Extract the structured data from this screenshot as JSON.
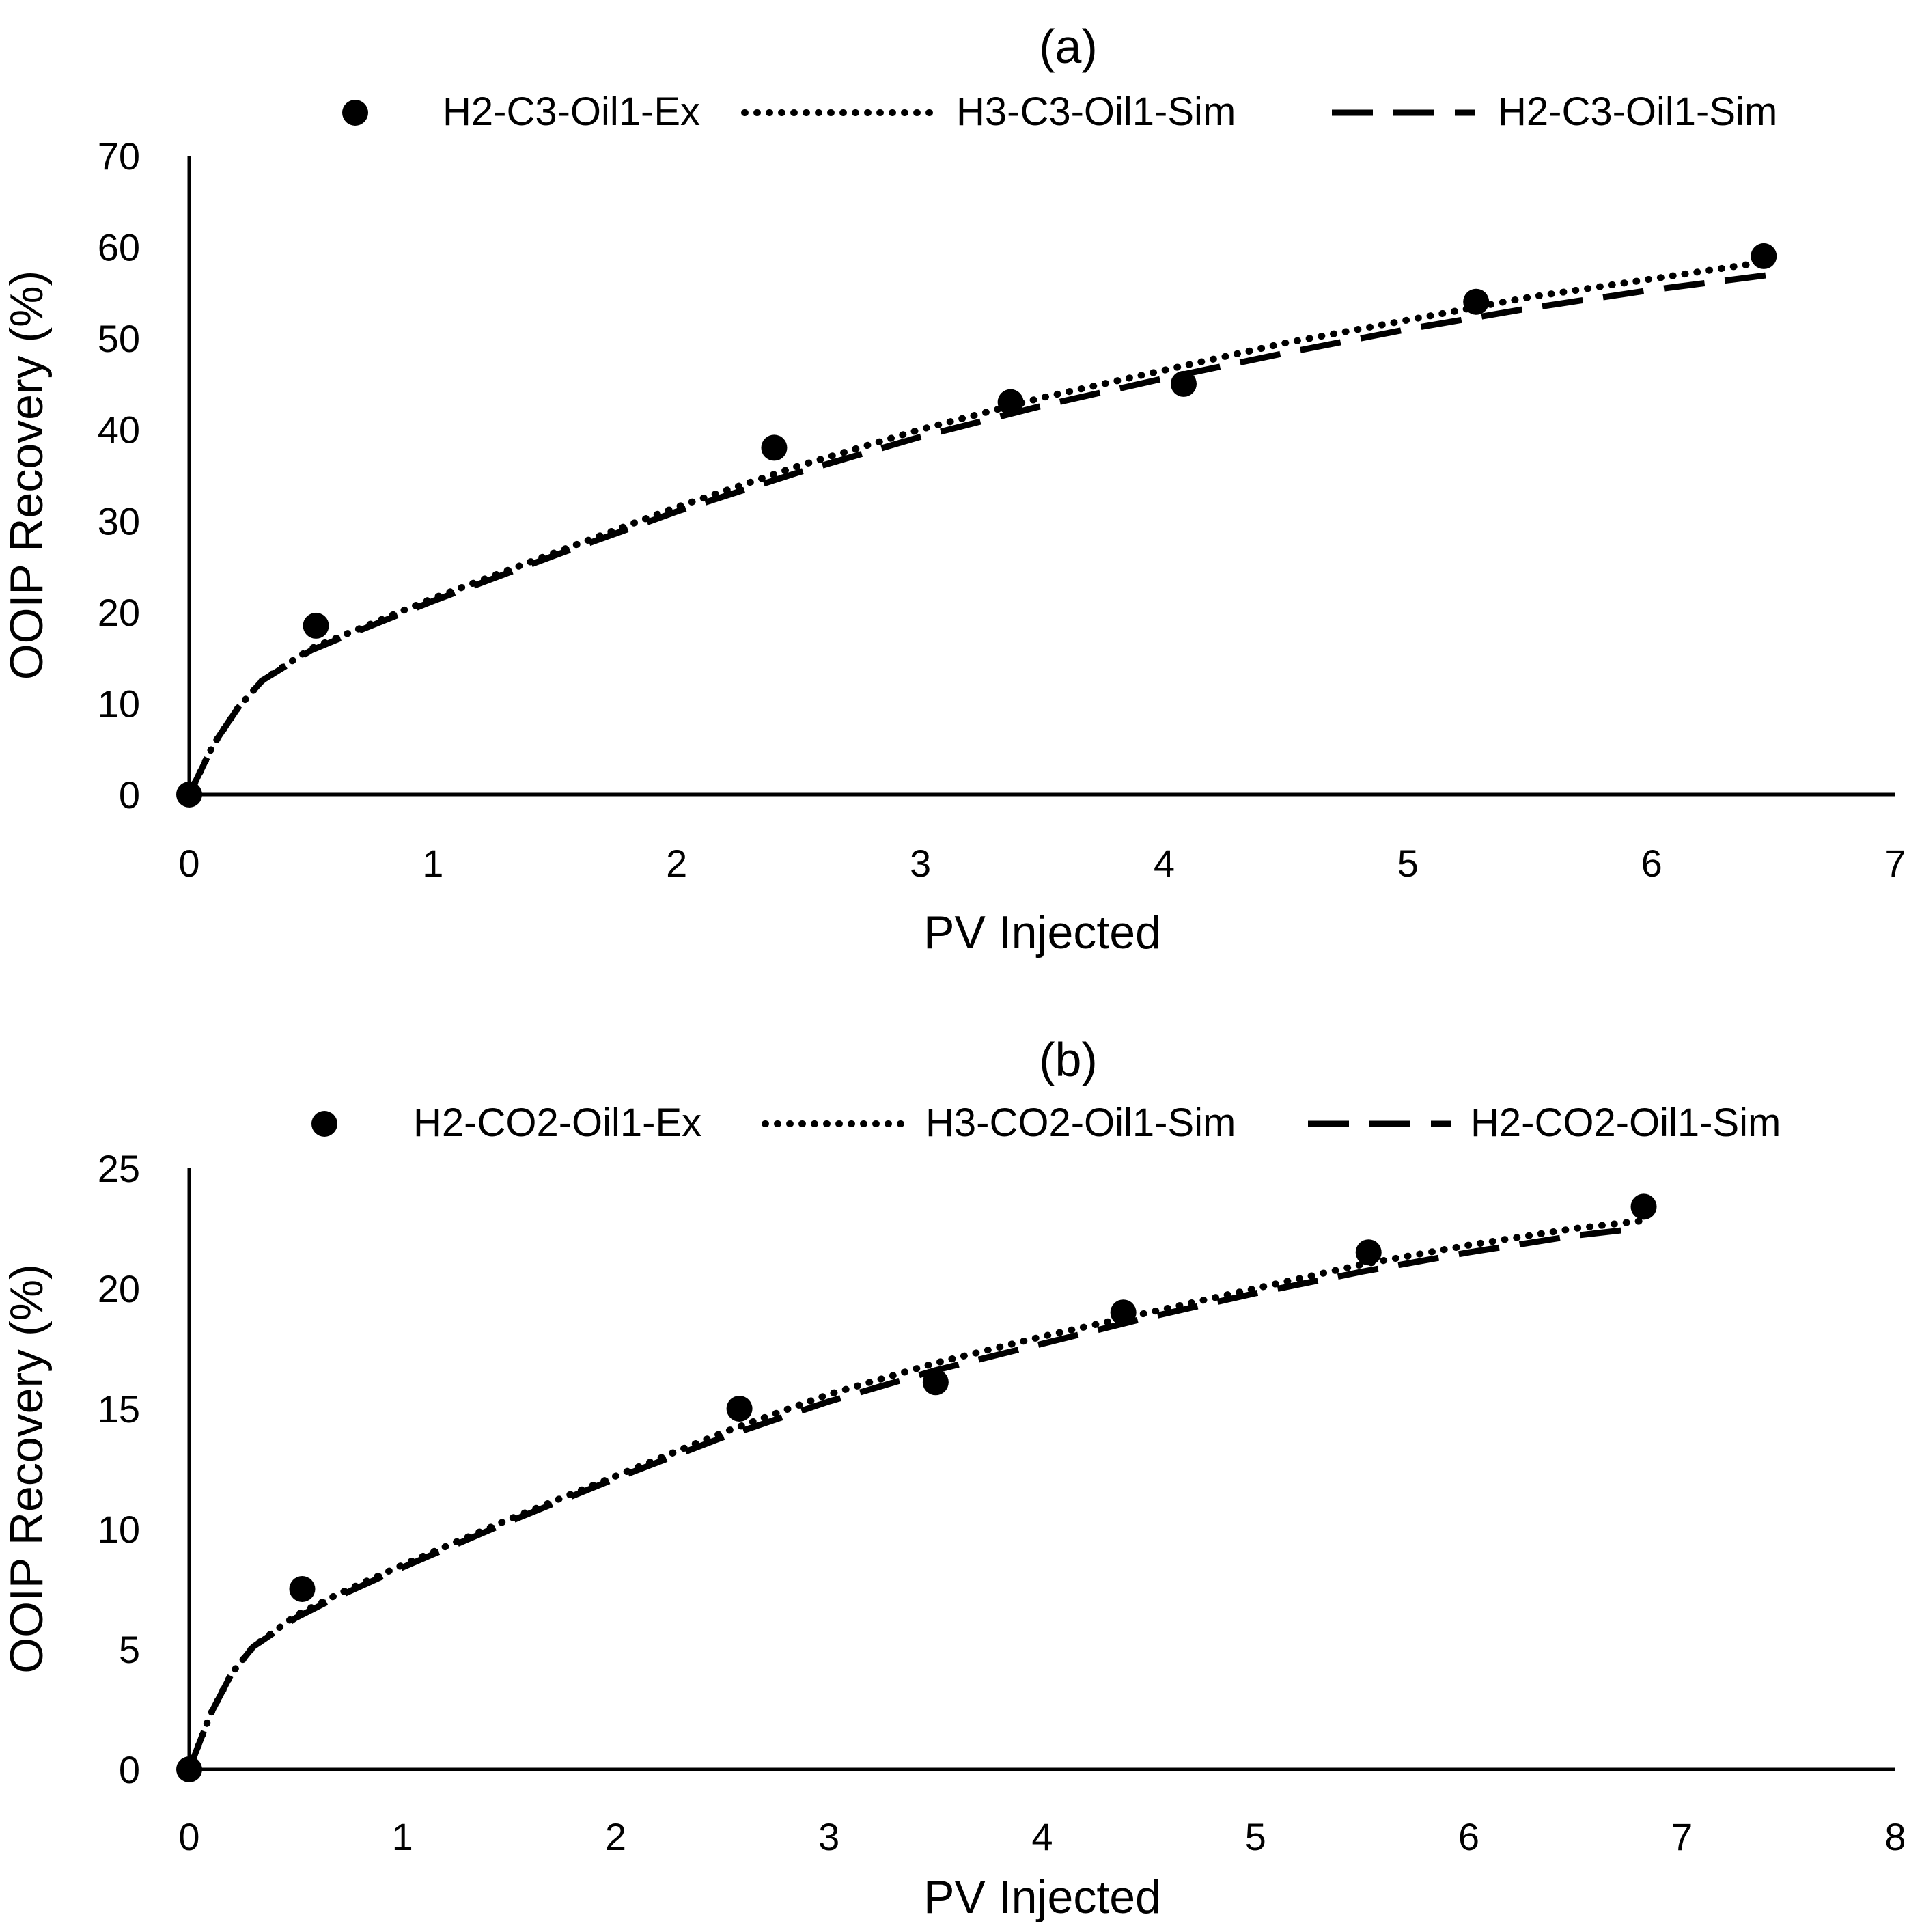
{
  "chart_data": [
    {
      "type": "line",
      "title": "(a)",
      "xlabel": "PV Injected",
      "ylabel": "OOIP Recovery (%)",
      "xlim": [
        0,
        7
      ],
      "ylim": [
        0,
        70
      ],
      "xticks": [
        "0",
        "1",
        "2",
        "3",
        "4",
        "5",
        "6",
        "7"
      ],
      "yticks": [
        "0",
        "10",
        "20",
        "30",
        "40",
        "50",
        "60",
        "70"
      ],
      "legend_position": "top",
      "series": [
        {
          "name": "H2-C3-Oil1-Ex",
          "style": "markers",
          "x": [
            0,
            0.52,
            2.4,
            3.37,
            4.08,
            5.28,
            6.46
          ],
          "y": [
            0,
            18.5,
            38,
            43,
            45,
            54,
            59
          ]
        },
        {
          "name": "H3-C3-Oil1-Sim",
          "style": "dotted",
          "x": [
            0,
            0.1,
            0.2,
            0.3,
            0.5,
            0.7,
            1.0,
            1.5,
            2.0,
            2.5,
            3.0,
            3.5,
            4.0,
            4.5,
            5.0,
            5.5,
            6.0,
            6.5
          ],
          "y": [
            0,
            5.5,
            9.5,
            12.5,
            16,
            18.2,
            21.5,
            26.5,
            31.5,
            36,
            40,
            43.5,
            46.5,
            49.5,
            52,
            54.5,
            56.5,
            58.5
          ]
        },
        {
          "name": "H2-C3-Oil1-Sim",
          "style": "dashed",
          "x": [
            0,
            0.1,
            0.2,
            0.3,
            0.5,
            0.7,
            1.0,
            1.5,
            2.0,
            2.5,
            3.0,
            3.5,
            4.0,
            4.5,
            5.0,
            5.5,
            6.0,
            6.5
          ],
          "y": [
            0,
            5.5,
            9.5,
            12.5,
            15.8,
            18,
            21.2,
            26.2,
            31,
            35.3,
            39.2,
            42.6,
            45.6,
            48.4,
            51,
            53.3,
            55.3,
            57
          ]
        }
      ]
    },
    {
      "type": "line",
      "title": "(b)",
      "xlabel": "PV Injected",
      "ylabel": "OOIP Recovery (%)",
      "xlim": [
        0,
        8
      ],
      "ylim": [
        0,
        25
      ],
      "xticks": [
        "0",
        "1",
        "2",
        "3",
        "4",
        "5",
        "6",
        "7",
        "8"
      ],
      "yticks": [
        "0",
        "5",
        "10",
        "15",
        "20",
        "25"
      ],
      "legend_position": "top",
      "series": [
        {
          "name": "H2-CO2-Oil1-Ex",
          "style": "markers",
          "x": [
            0,
            0.53,
            2.58,
            3.5,
            4.38,
            5.53,
            6.82
          ],
          "y": [
            0,
            7.5,
            15,
            16.1,
            19,
            21.5,
            23.4
          ]
        },
        {
          "name": "H3-CO2-Oil1-Sim",
          "style": "dotted",
          "x": [
            0,
            0.1,
            0.2,
            0.3,
            0.5,
            0.7,
            1.0,
            1.5,
            2.0,
            2.5,
            3.0,
            3.5,
            4.0,
            4.5,
            5.0,
            5.5,
            6.0,
            6.5,
            6.8
          ],
          "y": [
            0,
            2.3,
            4.0,
            5.1,
            6.4,
            7.3,
            8.5,
            10.4,
            12.2,
            14.0,
            15.6,
            16.9,
            18.0,
            19.0,
            20.0,
            21.0,
            21.8,
            22.5,
            22.8
          ]
        },
        {
          "name": "H2-CO2-Oil1-Sim",
          "style": "dashed",
          "x": [
            0,
            0.1,
            0.2,
            0.3,
            0.5,
            0.7,
            1.0,
            1.5,
            2.0,
            2.5,
            3.0,
            3.5,
            4.0,
            4.5,
            5.0,
            5.5,
            6.0,
            6.5,
            6.8
          ],
          "y": [
            0,
            2.3,
            4.0,
            5.1,
            6.3,
            7.2,
            8.4,
            10.3,
            12.1,
            13.8,
            15.3,
            16.6,
            17.7,
            18.8,
            19.8,
            20.7,
            21.5,
            22.2,
            22.5
          ]
        }
      ]
    }
  ]
}
